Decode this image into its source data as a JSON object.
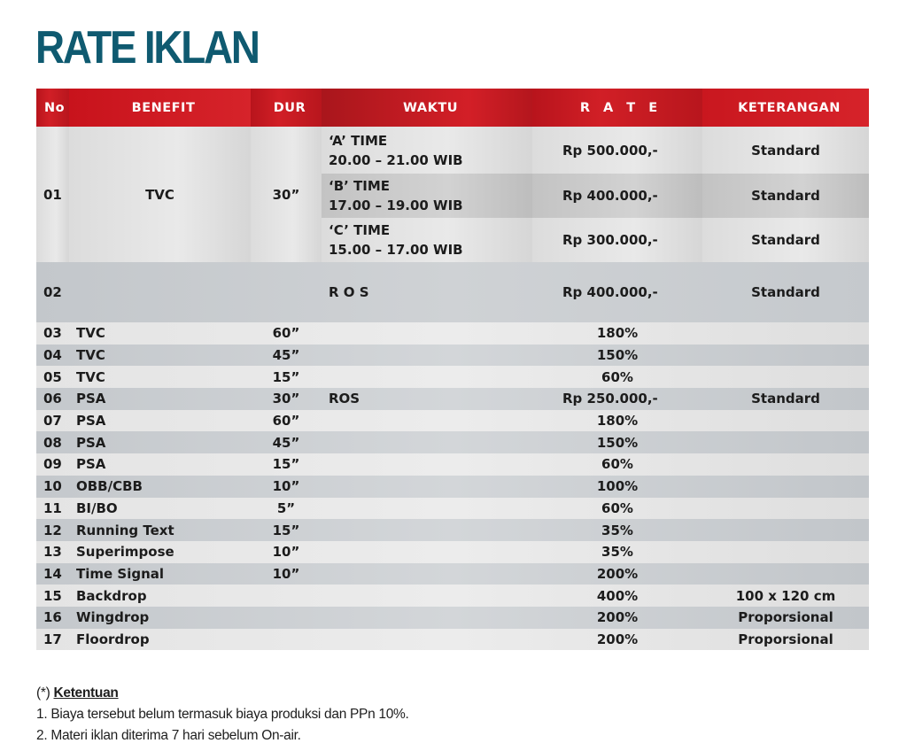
{
  "title": "RATE IKLAN",
  "colors": {
    "title": "#0f5a70",
    "header_bg": "#c8171f",
    "header_text": "#ffffff"
  },
  "columns": [
    "No",
    "BENEFIT",
    "DUR",
    "WAKTU",
    "R A T E",
    "KETERANGAN"
  ],
  "section1": {
    "no": "01",
    "benefit": "TVC",
    "dur": "30”",
    "slots": [
      {
        "waktu_line1": "‘A’ TIME",
        "waktu_line2": "20.00 – 21.00 WIB",
        "rate": "Rp  500.000,-",
        "keterangan": "Standard"
      },
      {
        "waktu_line1": "‘B’ TIME",
        "waktu_line2": "17.00 – 19.00 WIB",
        "rate": "Rp  400.000,-",
        "keterangan": "Standard"
      },
      {
        "waktu_line1": "‘C’ TIME",
        "waktu_line2": "15.00 – 17.00 WIB",
        "rate": "Rp  300.000,-",
        "keterangan": "Standard"
      }
    ]
  },
  "row02": {
    "no": "02",
    "benefit": "",
    "dur": "",
    "waktu": "R O S",
    "rate": "Rp  400.000,-",
    "keterangan": "Standard"
  },
  "rows": [
    {
      "no": "03",
      "benefit": "TVC",
      "dur": "60”",
      "waktu": "",
      "rate": "180%",
      "keterangan": ""
    },
    {
      "no": "04",
      "benefit": "TVC",
      "dur": "45”",
      "waktu": "",
      "rate": "150%",
      "keterangan": ""
    },
    {
      "no": "05",
      "benefit": "TVC",
      "dur": "15”",
      "waktu": "",
      "rate": "60%",
      "keterangan": ""
    },
    {
      "no": "06",
      "benefit": "PSA",
      "dur": "30”",
      "waktu": "ROS",
      "rate": "Rp  250.000,-",
      "keterangan": "Standard"
    },
    {
      "no": "07",
      "benefit": "PSA",
      "dur": "60”",
      "waktu": "",
      "rate": "180%",
      "keterangan": ""
    },
    {
      "no": "08",
      "benefit": "PSA",
      "dur": "45”",
      "waktu": "",
      "rate": "150%",
      "keterangan": ""
    },
    {
      "no": "09",
      "benefit": "PSA",
      "dur": "15”",
      "waktu": "",
      "rate": "60%",
      "keterangan": ""
    },
    {
      "no": "10",
      "benefit": "OBB/CBB",
      "dur": "10”",
      "waktu": "",
      "rate": "100%",
      "keterangan": ""
    },
    {
      "no": "11",
      "benefit": "BI/BO",
      "dur": "5”",
      "waktu": "",
      "rate": "60%",
      "keterangan": ""
    },
    {
      "no": "12",
      "benefit": "Running Text",
      "dur": "15”",
      "waktu": "",
      "rate": "35%",
      "keterangan": ""
    },
    {
      "no": "13",
      "benefit": "Superimpose",
      "dur": "10”",
      "waktu": "",
      "rate": "35%",
      "keterangan": ""
    },
    {
      "no": "14",
      "benefit": "Time Signal",
      "dur": "10”",
      "waktu": "",
      "rate": "200%",
      "keterangan": ""
    },
    {
      "no": "15",
      "benefit": "Backdrop",
      "dur": "",
      "waktu": "",
      "rate": "400%",
      "keterangan": "100 x 120 cm"
    },
    {
      "no": "16",
      "benefit": "Wingdrop",
      "dur": "",
      "waktu": "",
      "rate": "200%",
      "keterangan": "Proporsional"
    },
    {
      "no": "17",
      "benefit": "Floordrop",
      "dur": "",
      "waktu": "",
      "rate": "200%",
      "keterangan": "Proporsional"
    }
  ],
  "notes": {
    "prefix": "(*)",
    "heading": "Ketentuan",
    "items": [
      "1. Biaya tersebut belum termasuk biaya produksi dan PPn 10%.",
      "2. Materi iklan diterima 7 hari sebelum On-air."
    ]
  }
}
